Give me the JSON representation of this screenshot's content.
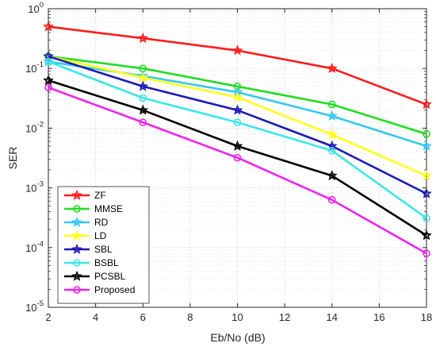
{
  "chart_data": {
    "type": "line",
    "xlabel": "Eb/No (dB)",
    "ylabel": "SER",
    "x": [
      2,
      6,
      10,
      14,
      18
    ],
    "xlim": [
      2,
      18
    ],
    "ylim": [
      1e-05,
      1
    ],
    "yscale": "log",
    "grid": "major and minor, dotted",
    "legend_position": "bottom-left",
    "xticks": [
      2,
      4,
      6,
      8,
      10,
      12,
      14,
      16,
      18
    ],
    "xtick_labels": [
      "2",
      "4",
      "6",
      "8",
      "10",
      "12",
      "14",
      "16",
      "18"
    ],
    "yticks": [
      {
        "value": 1,
        "base": "10",
        "exp": "0"
      },
      {
        "value": 0.1,
        "base": "10",
        "exp": "-1"
      },
      {
        "value": 0.01,
        "base": "10",
        "exp": "-2"
      },
      {
        "value": 0.001,
        "base": "10",
        "exp": "-3"
      },
      {
        "value": 0.0001,
        "base": "10",
        "exp": "-4"
      },
      {
        "value": 1e-05,
        "base": "10",
        "exp": "-5"
      }
    ],
    "series": [
      {
        "name": "ZF",
        "color": "#ff1a1a",
        "marker": "star",
        "values": [
          0.5,
          0.32,
          0.2,
          0.1,
          0.025
        ]
      },
      {
        "name": "MMSE",
        "color": "#22dd22",
        "marker": "circle",
        "values": [
          0.16,
          0.1,
          0.05,
          0.025,
          0.008
        ]
      },
      {
        "name": "RD",
        "color": "#33c8f0",
        "marker": "star",
        "values": [
          0.13,
          0.075,
          0.04,
          0.016,
          0.005
        ]
      },
      {
        "name": "LD",
        "color": "#ffff1a",
        "marker": "star",
        "values": [
          0.16,
          0.07,
          0.033,
          0.0078,
          0.0016
        ]
      },
      {
        "name": "SBL",
        "color": "#1a1ab4",
        "marker": "star",
        "values": [
          0.16,
          0.05,
          0.02,
          0.005,
          0.0008
        ]
      },
      {
        "name": "BSBL",
        "color": "#3ee6e6",
        "marker": "circle",
        "values": [
          0.13,
          0.032,
          0.0125,
          0.0042,
          0.00031
        ]
      },
      {
        "name": "PCSBL",
        "color": "#000000",
        "marker": "star",
        "values": [
          0.063,
          0.02,
          0.005,
          0.0016,
          0.00016
        ]
      },
      {
        "name": "Proposed",
        "color": "#ee22ee",
        "marker": "circle",
        "values": [
          0.048,
          0.0125,
          0.0032,
          0.00063,
          8e-05
        ]
      }
    ]
  }
}
